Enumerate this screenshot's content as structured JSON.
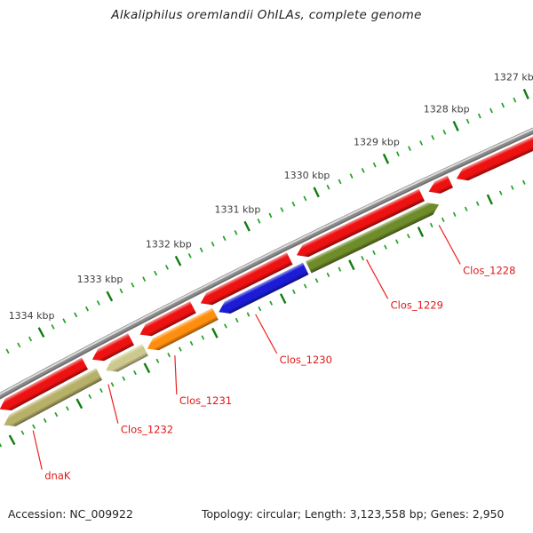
{
  "title": "Alkaliphilus oremlandii OhILAs, complete genome",
  "footer": {
    "accession": "Accession: NC_009922",
    "stats": "Topology: circular; Length: 3,123,558 bp; Genes: 2,950"
  },
  "ruler": {
    "unit": "kbp",
    "label_suffix": " kbp",
    "labeled_ticks_kbp": [
      1327,
      1328,
      1329,
      1330,
      1331,
      1332,
      1333,
      1334
    ],
    "visible_range_kbp": [
      1326.9,
      1335.1
    ],
    "major_interval_kbp": 1,
    "minor_divisions_per_major": 6,
    "tick_color_major": "#107d10",
    "tick_color_minor": "#22a022",
    "tick_label_color": "#3a3f3a"
  },
  "backbone": {
    "topology": "circular-arc",
    "color": "#8a8a8a",
    "highlight": "#dcdcdc",
    "shadow": "#6a6a6a"
  },
  "label_style": {
    "callout_color": "#f02020",
    "text_color": "#e01818"
  },
  "genes": [
    {
      "label": null,
      "row": 1,
      "from_kbp": 1334.95,
      "to_kbp": 1333.69,
      "color": "#ee1111",
      "direction": "left"
    },
    {
      "label": null,
      "row": 1,
      "from_kbp": 1333.58,
      "to_kbp": 1333.01,
      "color": "#ee1111",
      "direction": "left"
    },
    {
      "label": null,
      "row": 1,
      "from_kbp": 1332.88,
      "to_kbp": 1332.1,
      "color": "#ee1111",
      "direction": "left"
    },
    {
      "label": null,
      "row": 1,
      "from_kbp": 1331.99,
      "to_kbp": 1330.69,
      "color": "#ee1111",
      "direction": "left"
    },
    {
      "label": null,
      "row": 1,
      "from_kbp": 1330.59,
      "to_kbp": 1328.78,
      "color": "#ee1111",
      "direction": "left"
    },
    {
      "label": "Clos_1228",
      "row": 1,
      "from_kbp": 1328.68,
      "to_kbp": 1328.37,
      "color": "#ee1111",
      "direction": "left"
    },
    {
      "label": null,
      "row": 1,
      "from_kbp": 1328.28,
      "to_kbp": 1326.88,
      "color": "#ee1111",
      "direction": "left"
    },
    {
      "label": "dnaK",
      "row": 2,
      "from_kbp": 1335.0,
      "to_kbp": 1333.59,
      "color": "#b7b069",
      "direction": "left"
    },
    {
      "label": "Clos_1232",
      "row": 2,
      "from_kbp": 1333.49,
      "to_kbp": 1332.91,
      "color": "#cdc88e",
      "direction": "left"
    },
    {
      "label": "Clos_1231",
      "row": 2,
      "from_kbp": 1332.88,
      "to_kbp": 1331.88,
      "color": "#ff8e0e",
      "direction": "left"
    },
    {
      "label": "Clos_1230",
      "row": 2,
      "from_kbp": 1331.83,
      "to_kbp": 1330.56,
      "color": "#1c1cd6",
      "direction": "left"
    },
    {
      "label": "Clos_1229",
      "row": 2,
      "from_kbp": 1330.52,
      "to_kbp": 1328.63,
      "color": "#6f8c2a",
      "direction": "right"
    }
  ]
}
